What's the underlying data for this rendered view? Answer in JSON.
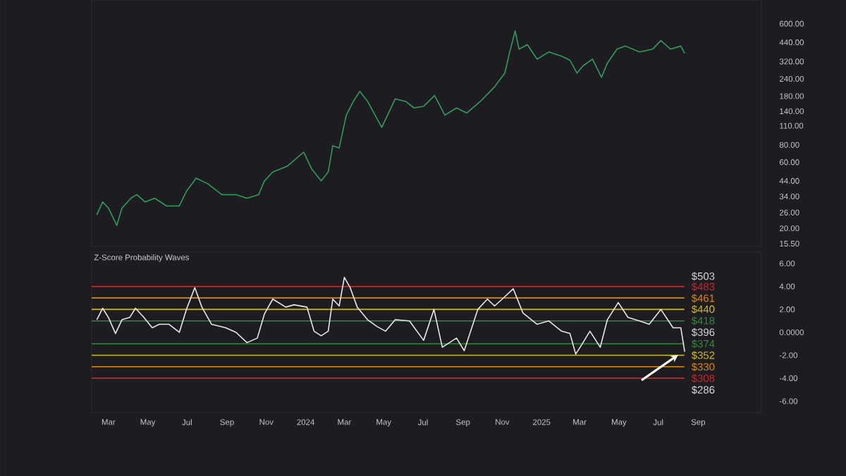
{
  "chart_data": [
    {
      "type": "line",
      "color": "#2e9e5b",
      "log": true,
      "tick_labels": "y",
      "x": [
        "2023-02-11",
        "2023-02-20",
        "2023-03-01",
        "2023-03-14",
        "2023-03-22",
        "2023-04-05",
        "2023-04-14",
        "2023-04-27",
        "2023-05-12",
        "2023-05-30",
        "2023-06-19",
        "2023-06-30",
        "2023-07-15",
        "2023-08-02",
        "2023-08-24",
        "2023-09-15",
        "2023-10-02",
        "2023-10-20",
        "2023-10-29",
        "2023-11-11",
        "2023-12-03",
        "2023-12-29",
        "2024-01-10",
        "2024-01-25",
        "2024-02-05",
        "2024-02-12",
        "2024-02-22",
        "2024-03-04",
        "2024-03-15",
        "2024-03-25",
        "2024-04-06",
        "2024-04-28",
        "2024-05-19",
        "2024-06-04",
        "2024-06-17",
        "2024-07-02",
        "2024-07-19",
        "2024-08-04",
        "2024-08-22",
        "2024-09-07",
        "2024-09-28",
        "2024-10-20",
        "2024-11-05",
        "2024-11-12",
        "2024-11-21",
        "2024-11-27",
        "2024-12-10",
        "2024-12-25",
        "2025-01-12",
        "2025-02-01",
        "2025-02-14",
        "2025-02-25",
        "2025-03-06",
        "2025-03-21",
        "2025-04-04",
        "2025-04-13",
        "2025-04-28",
        "2025-05-11",
        "2025-06-02",
        "2025-06-22",
        "2025-07-05",
        "2025-07-20",
        "2025-08-05",
        "2025-08-11"
      ],
      "values": [
        25,
        31,
        28,
        21,
        28,
        33,
        35,
        31,
        33,
        29,
        29,
        37,
        46,
        42,
        35,
        35,
        33,
        35,
        44,
        51,
        56,
        71,
        54,
        44,
        51,
        79,
        76,
        131,
        165,
        195,
        165,
        107,
        172,
        165,
        148,
        152,
        182,
        131,
        148,
        136,
        165,
        210,
        264,
        366,
        532,
        393,
        423,
        333,
        375,
        350,
        327,
        264,
        297,
        333,
        246,
        311,
        393,
        414,
        375,
        393,
        453,
        393,
        414,
        366
      ],
      "xlim": [
        "2023-02-03",
        "2025-12-08"
      ],
      "ylim": [
        14.8,
        890
      ],
      "yticks": [
        {
          "value": 15.5,
          "label": "15.50"
        },
        {
          "value": 20,
          "label": "20.00"
        },
        {
          "value": 26,
          "label": "26.00"
        },
        {
          "value": 34,
          "label": "34.00"
        },
        {
          "value": 44,
          "label": "44.00"
        },
        {
          "value": 60,
          "label": "60.00"
        },
        {
          "value": 80,
          "label": "80.00"
        },
        {
          "value": 110,
          "label": "110.00"
        },
        {
          "value": 140,
          "label": "140.00"
        },
        {
          "value": 180,
          "label": "180.00"
        },
        {
          "value": 240,
          "label": "240.00"
        },
        {
          "value": 320,
          "label": "320.00"
        },
        {
          "value": 440,
          "label": "440.00"
        },
        {
          "value": 600,
          "label": "600.00"
        }
      ]
    },
    {
      "type": "line",
      "title": "Z-Score Probability Waves",
      "color": "#e8e8e8",
      "x": [
        "2023-02-11",
        "2023-02-20",
        "2023-03-01",
        "2023-03-12",
        "2023-03-22",
        "2023-04-03",
        "2023-04-12",
        "2023-04-25",
        "2023-05-08",
        "2023-05-19",
        "2023-06-03",
        "2023-06-19",
        "2023-06-30",
        "2023-07-13",
        "2023-07-24",
        "2023-08-08",
        "2023-08-30",
        "2023-09-15",
        "2023-10-02",
        "2023-10-18",
        "2023-10-29",
        "2023-11-11",
        "2023-12-01",
        "2023-12-14",
        "2024-01-03",
        "2024-01-14",
        "2024-01-25",
        "2024-02-05",
        "2024-02-12",
        "2024-02-22",
        "2024-03-01",
        "2024-03-10",
        "2024-03-21",
        "2024-04-06",
        "2024-04-21",
        "2024-05-04",
        "2024-05-19",
        "2024-06-10",
        "2024-07-02",
        "2024-07-18",
        "2024-07-31",
        "2024-08-22",
        "2024-09-03",
        "2024-09-24",
        "2024-10-09",
        "2024-10-20",
        "2024-11-01",
        "2024-11-18",
        "2024-12-03",
        "2024-12-25",
        "2025-01-12",
        "2025-02-01",
        "2025-02-14",
        "2025-02-23",
        "2025-03-04",
        "2025-03-17",
        "2025-04-02",
        "2025-04-13",
        "2025-04-30",
        "2025-05-15",
        "2025-06-02",
        "2025-06-17",
        "2025-07-05",
        "2025-07-24",
        "2025-08-05",
        "2025-08-11"
      ],
      "values": [
        1.1,
        2.1,
        1.3,
        -0.1,
        1.1,
        1.3,
        2.1,
        1.3,
        0.4,
        0.7,
        0.7,
        0,
        2.0,
        3.9,
        2.2,
        0.7,
        0.4,
        0,
        -0.9,
        -0.5,
        1.6,
        2.9,
        2.2,
        2.4,
        2.2,
        0.1,
        -0.3,
        0.1,
        2.9,
        2.3,
        4.8,
        3.9,
        2.2,
        1.1,
        0.5,
        0.1,
        1.1,
        1.0,
        -0.7,
        2.0,
        -1.3,
        -0.5,
        -1.6,
        2.0,
        2.9,
        2.3,
        2.9,
        3.8,
        1.7,
        0.7,
        1.0,
        0.1,
        -0.1,
        -1.9,
        -1.1,
        0.1,
        -1.3,
        1.1,
        2.6,
        1.3,
        1.0,
        0.7,
        2.0,
        0.4,
        0.4,
        -1.7
      ],
      "xlim": [
        "2023-02-03",
        "2025-12-08"
      ],
      "ylim": [
        -7,
        7
      ],
      "xticks": [
        {
          "value": "2023-03-01",
          "label": "Mar"
        },
        {
          "value": "2023-05-01",
          "label": "May"
        },
        {
          "value": "2023-07-01",
          "label": "Jul"
        },
        {
          "value": "2023-09-01",
          "label": "Sep"
        },
        {
          "value": "2023-11-01",
          "label": "Nov"
        },
        {
          "value": "2024-01-01",
          "label": "2024"
        },
        {
          "value": "2024-03-01",
          "label": "Mar"
        },
        {
          "value": "2024-05-01",
          "label": "May"
        },
        {
          "value": "2024-07-01",
          "label": "Jul"
        },
        {
          "value": "2024-09-01",
          "label": "Sep"
        },
        {
          "value": "2024-11-01",
          "label": "Nov"
        },
        {
          "value": "2025-01-01",
          "label": "2025"
        },
        {
          "value": "2025-03-01",
          "label": "Mar"
        },
        {
          "value": "2025-05-01",
          "label": "May"
        },
        {
          "value": "2025-07-01",
          "label": "Jul"
        },
        {
          "value": "2025-09-01",
          "label": "Sep"
        }
      ],
      "yticks": [
        {
          "value": 6,
          "label": "6.00"
        },
        {
          "value": 4,
          "label": "4.00"
        },
        {
          "value": 2,
          "label": "2.00"
        },
        {
          "value": 0,
          "label": "0.0000"
        },
        {
          "value": -2,
          "label": "-2.00"
        },
        {
          "value": -4,
          "label": "-4.00"
        },
        {
          "value": -6,
          "label": "-6.00"
        }
      ],
      "ref_lines": [
        {
          "axis": "y",
          "value": 4,
          "color": "#c62828"
        },
        {
          "axis": "y",
          "value": 3,
          "color": "#e08a00"
        },
        {
          "axis": "y",
          "value": 2,
          "color": "#d4c000"
        },
        {
          "axis": "y",
          "value": 1,
          "color": "#2e8b3a"
        },
        {
          "axis": "y",
          "value": -1,
          "color": "#2e8b3a"
        },
        {
          "axis": "y",
          "value": -2,
          "color": "#d4c000"
        },
        {
          "axis": "y",
          "value": -3,
          "color": "#e08a00"
        },
        {
          "axis": "y",
          "value": -4,
          "color": "#c62828"
        }
      ],
      "y2lim": [
        242.7,
        549.3
      ],
      "y2ticks": [
        {
          "value": 503,
          "label": "$503"
        },
        {
          "value": 483,
          "label": "$483"
        },
        {
          "value": 461,
          "label": "$461"
        },
        {
          "value": 440,
          "label": "$440"
        },
        {
          "value": 418,
          "label": "$418"
        },
        {
          "value": 396,
          "label": "$396"
        },
        {
          "value": 374,
          "label": "$374"
        },
        {
          "value": 352,
          "label": "$352"
        },
        {
          "value": 330,
          "label": "$330"
        },
        {
          "value": 308,
          "label": "$308"
        },
        {
          "value": 286,
          "label": "$286"
        }
      ]
    }
  ]
}
